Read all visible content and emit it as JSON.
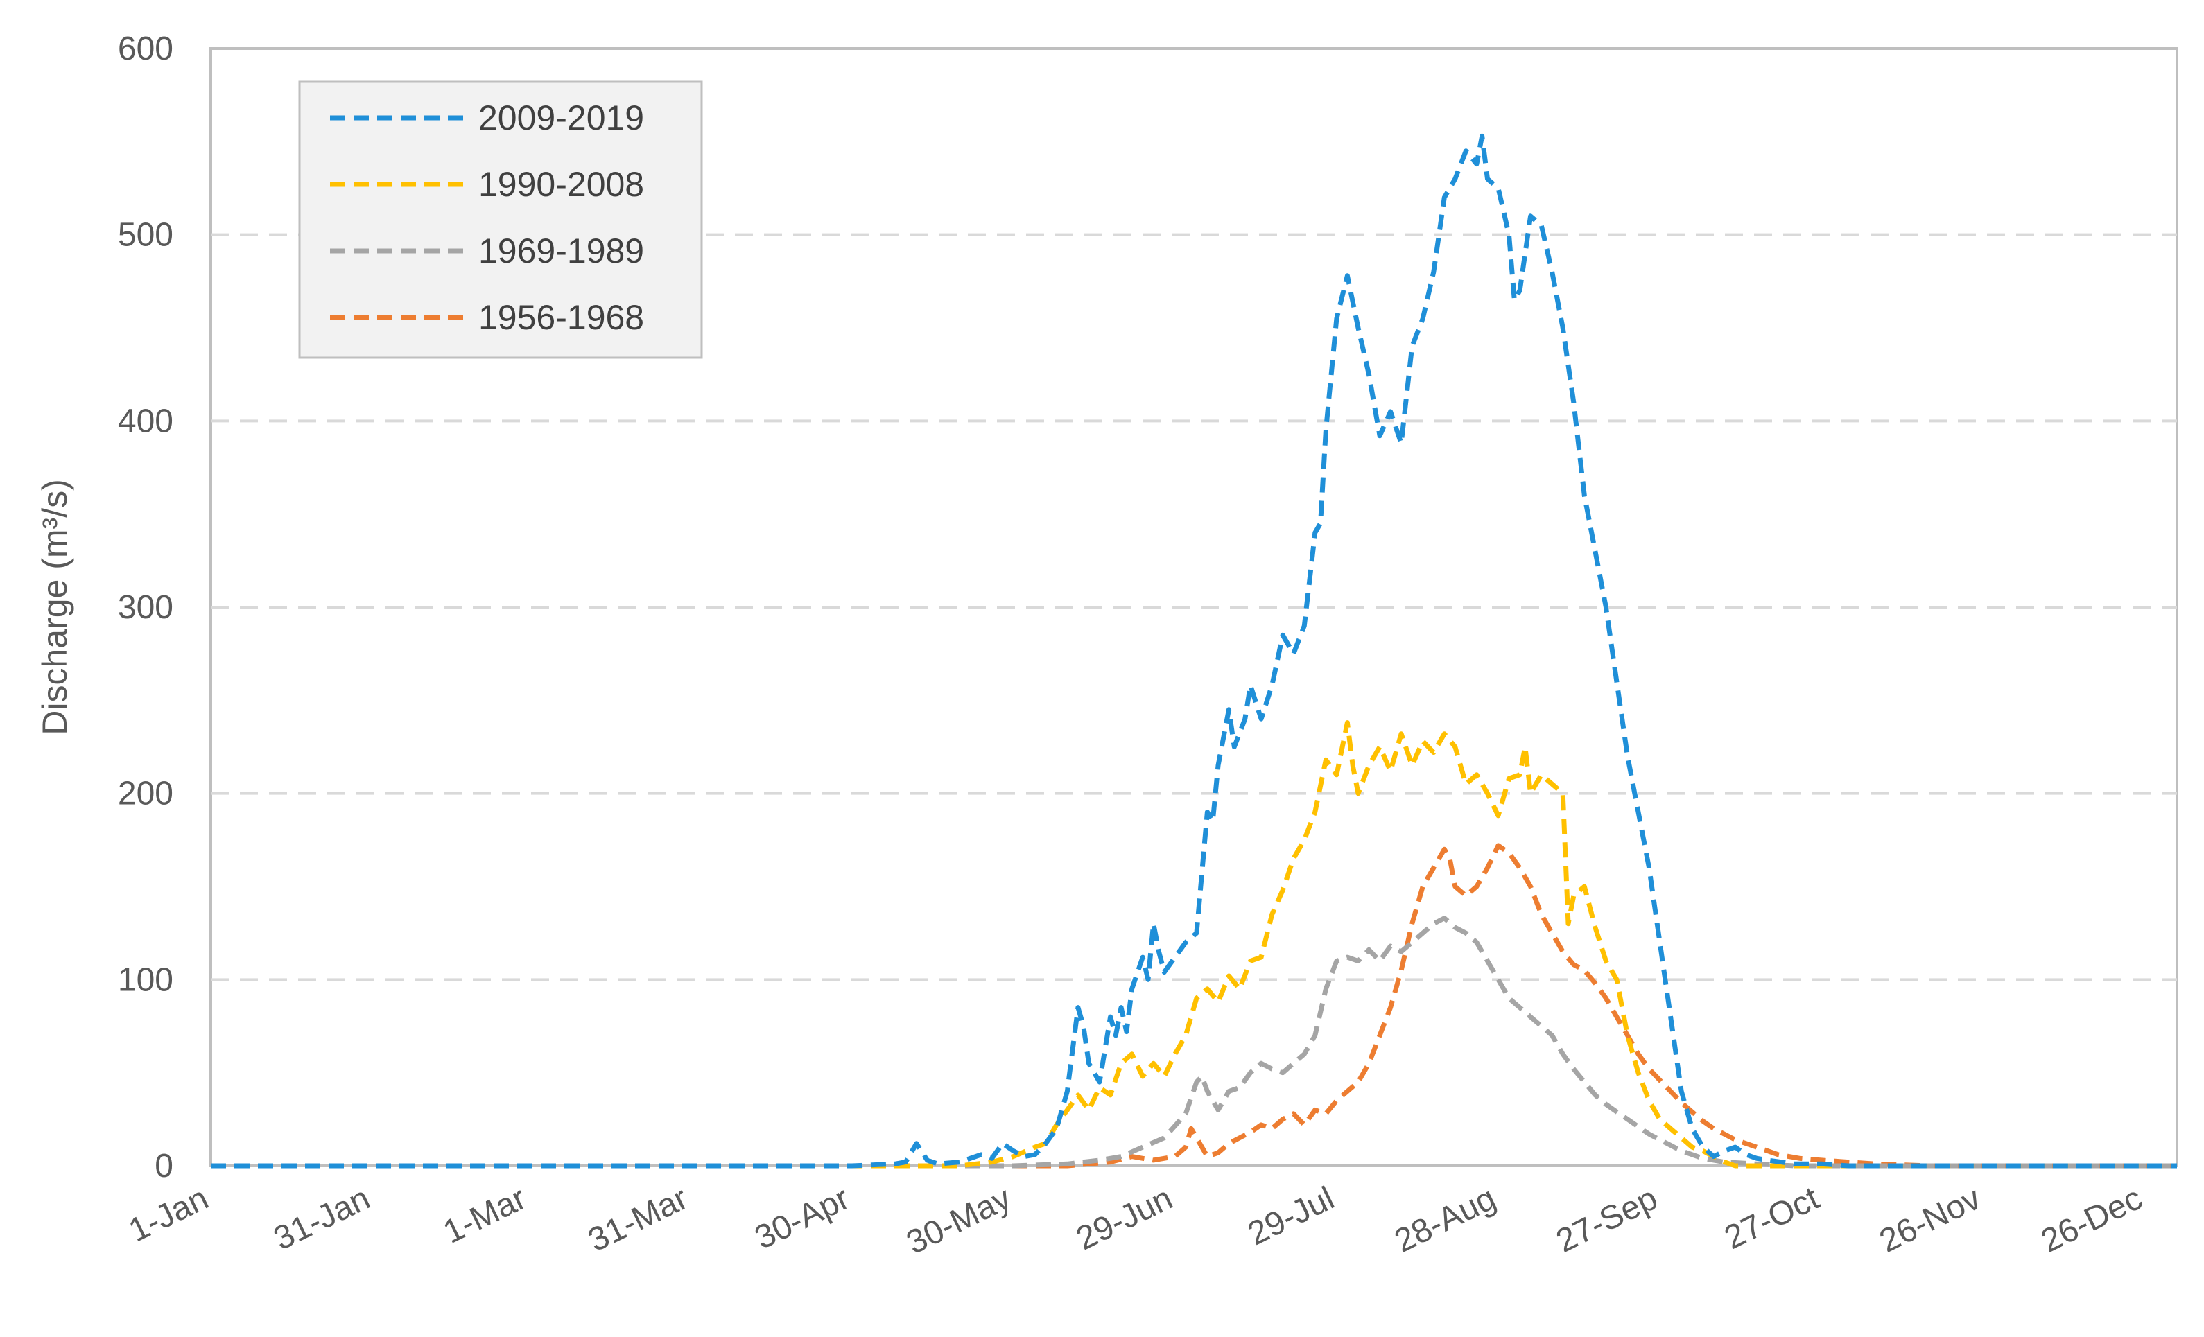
{
  "chart_data": {
    "type": "line",
    "title": "",
    "xlabel": "",
    "ylabel": "Discharge (m³/s)",
    "ylim": [
      0,
      600
    ],
    "yticks": [
      0,
      100,
      200,
      300,
      400,
      500,
      600
    ],
    "xlim": [
      1,
      366
    ],
    "xticks": [
      {
        "day": 1,
        "label": "1-Jan"
      },
      {
        "day": 31,
        "label": "31-Jan"
      },
      {
        "day": 60,
        "label": "1-Mar"
      },
      {
        "day": 90,
        "label": "31-Mar"
      },
      {
        "day": 120,
        "label": "30-Apr"
      },
      {
        "day": 150,
        "label": "30-May"
      },
      {
        "day": 180,
        "label": "29-Jun"
      },
      {
        "day": 210,
        "label": "29-Jul"
      },
      {
        "day": 240,
        "label": "28-Aug"
      },
      {
        "day": 270,
        "label": "27-Sep"
      },
      {
        "day": 300,
        "label": "27-Oct"
      },
      {
        "day": 330,
        "label": "26-Nov"
      },
      {
        "day": 360,
        "label": "26-Dec"
      }
    ],
    "grid": "horizontal dashed",
    "legend_position": "top-left",
    "series": [
      {
        "name": "2009-2019",
        "color": "#1F8FD8",
        "points": [
          [
            1,
            0
          ],
          [
            120,
            0
          ],
          [
            128,
            1
          ],
          [
            130,
            2
          ],
          [
            132,
            12
          ],
          [
            134,
            3
          ],
          [
            136,
            1
          ],
          [
            140,
            2
          ],
          [
            144,
            6
          ],
          [
            146,
            4
          ],
          [
            148,
            12
          ],
          [
            150,
            8
          ],
          [
            152,
            5
          ],
          [
            154,
            6
          ],
          [
            156,
            12
          ],
          [
            158,
            20
          ],
          [
            160,
            40
          ],
          [
            162,
            85
          ],
          [
            163,
            75
          ],
          [
            164,
            55
          ],
          [
            166,
            45
          ],
          [
            168,
            80
          ],
          [
            169,
            70
          ],
          [
            170,
            85
          ],
          [
            171,
            72
          ],
          [
            172,
            95
          ],
          [
            174,
            112
          ],
          [
            175,
            100
          ],
          [
            176,
            130
          ],
          [
            177,
            115
          ],
          [
            178,
            104
          ],
          [
            180,
            112
          ],
          [
            182,
            120
          ],
          [
            184,
            125
          ],
          [
            186,
            190
          ],
          [
            187,
            185
          ],
          [
            188,
            215
          ],
          [
            190,
            245
          ],
          [
            191,
            225
          ],
          [
            193,
            240
          ],
          [
            194,
            258
          ],
          [
            196,
            240
          ],
          [
            198,
            258
          ],
          [
            200,
            285
          ],
          [
            202,
            275
          ],
          [
            204,
            290
          ],
          [
            206,
            340
          ],
          [
            207,
            345
          ],
          [
            208,
            395
          ],
          [
            210,
            455
          ],
          [
            212,
            478
          ],
          [
            214,
            450
          ],
          [
            216,
            425
          ],
          [
            218,
            392
          ],
          [
            220,
            405
          ],
          [
            222,
            388
          ],
          [
            224,
            440
          ],
          [
            226,
            455
          ],
          [
            228,
            480
          ],
          [
            230,
            520
          ],
          [
            232,
            530
          ],
          [
            234,
            545
          ],
          [
            236,
            538
          ],
          [
            237,
            553
          ],
          [
            238,
            530
          ],
          [
            240,
            525
          ],
          [
            242,
            500
          ],
          [
            243,
            465
          ],
          [
            244,
            470
          ],
          [
            246,
            510
          ],
          [
            248,
            505
          ],
          [
            250,
            480
          ],
          [
            252,
            450
          ],
          [
            254,
            410
          ],
          [
            256,
            360
          ],
          [
            258,
            330
          ],
          [
            260,
            300
          ],
          [
            262,
            260
          ],
          [
            264,
            220
          ],
          [
            266,
            190
          ],
          [
            268,
            160
          ],
          [
            270,
            120
          ],
          [
            272,
            80
          ],
          [
            274,
            40
          ],
          [
            276,
            20
          ],
          [
            278,
            10
          ],
          [
            280,
            5
          ],
          [
            282,
            8
          ],
          [
            284,
            10
          ],
          [
            286,
            6
          ],
          [
            288,
            4
          ],
          [
            290,
            3
          ],
          [
            295,
            1
          ],
          [
            300,
            1
          ],
          [
            305,
            0
          ],
          [
            366,
            0
          ]
        ]
      },
      {
        "name": "1990-2008",
        "color": "#FFC000",
        "points": [
          [
            1,
            0
          ],
          [
            140,
            0
          ],
          [
            146,
            2
          ],
          [
            150,
            5
          ],
          [
            154,
            10
          ],
          [
            156,
            12
          ],
          [
            158,
            22
          ],
          [
            160,
            30
          ],
          [
            162,
            38
          ],
          [
            164,
            30
          ],
          [
            166,
            42
          ],
          [
            168,
            38
          ],
          [
            170,
            55
          ],
          [
            172,
            60
          ],
          [
            174,
            48
          ],
          [
            176,
            55
          ],
          [
            178,
            48
          ],
          [
            180,
            60
          ],
          [
            182,
            70
          ],
          [
            184,
            90
          ],
          [
            186,
            95
          ],
          [
            188,
            88
          ],
          [
            190,
            102
          ],
          [
            192,
            95
          ],
          [
            194,
            110
          ],
          [
            196,
            112
          ],
          [
            198,
            135
          ],
          [
            200,
            148
          ],
          [
            202,
            165
          ],
          [
            204,
            175
          ],
          [
            206,
            190
          ],
          [
            208,
            218
          ],
          [
            210,
            210
          ],
          [
            212,
            238
          ],
          [
            213,
            215
          ],
          [
            214,
            200
          ],
          [
            216,
            215
          ],
          [
            218,
            225
          ],
          [
            220,
            212
          ],
          [
            222,
            232
          ],
          [
            224,
            215
          ],
          [
            226,
            228
          ],
          [
            228,
            222
          ],
          [
            230,
            232
          ],
          [
            232,
            225
          ],
          [
            234,
            205
          ],
          [
            236,
            210
          ],
          [
            238,
            200
          ],
          [
            240,
            188
          ],
          [
            242,
            208
          ],
          [
            244,
            210
          ],
          [
            245,
            225
          ],
          [
            246,
            200
          ],
          [
            248,
            210
          ],
          [
            250,
            205
          ],
          [
            252,
            200
          ],
          [
            253,
            130
          ],
          [
            254,
            145
          ],
          [
            256,
            150
          ],
          [
            258,
            128
          ],
          [
            260,
            110
          ],
          [
            262,
            100
          ],
          [
            264,
            70
          ],
          [
            266,
            50
          ],
          [
            268,
            35
          ],
          [
            270,
            25
          ],
          [
            272,
            20
          ],
          [
            274,
            15
          ],
          [
            276,
            10
          ],
          [
            278,
            8
          ],
          [
            280,
            5
          ],
          [
            282,
            2
          ],
          [
            284,
            0
          ],
          [
            366,
            0
          ]
        ]
      },
      {
        "name": "1969-1989",
        "color": "#A5A5A5",
        "points": [
          [
            1,
            0
          ],
          [
            150,
            0
          ],
          [
            160,
            1
          ],
          [
            166,
            3
          ],
          [
            170,
            5
          ],
          [
            174,
            10
          ],
          [
            178,
            15
          ],
          [
            182,
            28
          ],
          [
            184,
            45
          ],
          [
            185,
            48
          ],
          [
            186,
            40
          ],
          [
            188,
            30
          ],
          [
            190,
            40
          ],
          [
            192,
            42
          ],
          [
            194,
            50
          ],
          [
            196,
            55
          ],
          [
            198,
            52
          ],
          [
            200,
            50
          ],
          [
            202,
            55
          ],
          [
            204,
            60
          ],
          [
            206,
            70
          ],
          [
            208,
            95
          ],
          [
            210,
            110
          ],
          [
            212,
            112
          ],
          [
            214,
            110
          ],
          [
            216,
            116
          ],
          [
            218,
            110
          ],
          [
            220,
            118
          ],
          [
            222,
            115
          ],
          [
            224,
            120
          ],
          [
            226,
            125
          ],
          [
            228,
            130
          ],
          [
            230,
            133
          ],
          [
            232,
            128
          ],
          [
            234,
            125
          ],
          [
            236,
            120
          ],
          [
            238,
            110
          ],
          [
            240,
            100
          ],
          [
            242,
            90
          ],
          [
            244,
            85
          ],
          [
            246,
            80
          ],
          [
            248,
            75
          ],
          [
            250,
            70
          ],
          [
            252,
            60
          ],
          [
            254,
            52
          ],
          [
            256,
            45
          ],
          [
            258,
            38
          ],
          [
            260,
            33
          ],
          [
            262,
            29
          ],
          [
            264,
            25
          ],
          [
            266,
            21
          ],
          [
            268,
            17
          ],
          [
            270,
            14
          ],
          [
            272,
            11
          ],
          [
            274,
            8
          ],
          [
            278,
            4
          ],
          [
            282,
            2
          ],
          [
            288,
            1
          ],
          [
            295,
            0
          ],
          [
            366,
            0
          ]
        ]
      },
      {
        "name": "1956-1968",
        "color": "#ED7D31",
        "points": [
          [
            1,
            0
          ],
          [
            160,
            0
          ],
          [
            168,
            2
          ],
          [
            172,
            5
          ],
          [
            176,
            3
          ],
          [
            180,
            5
          ],
          [
            182,
            10
          ],
          [
            183,
            20
          ],
          [
            184,
            15
          ],
          [
            186,
            5
          ],
          [
            188,
            7
          ],
          [
            190,
            12
          ],
          [
            192,
            15
          ],
          [
            194,
            18
          ],
          [
            196,
            22
          ],
          [
            198,
            20
          ],
          [
            200,
            25
          ],
          [
            202,
            28
          ],
          [
            204,
            22
          ],
          [
            206,
            30
          ],
          [
            208,
            28
          ],
          [
            210,
            35
          ],
          [
            212,
            40
          ],
          [
            214,
            45
          ],
          [
            216,
            55
          ],
          [
            218,
            70
          ],
          [
            220,
            85
          ],
          [
            222,
            105
          ],
          [
            224,
            130
          ],
          [
            226,
            150
          ],
          [
            228,
            160
          ],
          [
            230,
            170
          ],
          [
            231,
            165
          ],
          [
            232,
            150
          ],
          [
            234,
            145
          ],
          [
            236,
            150
          ],
          [
            238,
            160
          ],
          [
            240,
            172
          ],
          [
            242,
            168
          ],
          [
            244,
            160
          ],
          [
            246,
            150
          ],
          [
            248,
            135
          ],
          [
            250,
            125
          ],
          [
            252,
            115
          ],
          [
            254,
            108
          ],
          [
            256,
            105
          ],
          [
            258,
            98
          ],
          [
            260,
            90
          ],
          [
            262,
            80
          ],
          [
            264,
            70
          ],
          [
            266,
            60
          ],
          [
            268,
            52
          ],
          [
            270,
            46
          ],
          [
            272,
            40
          ],
          [
            274,
            34
          ],
          [
            276,
            29
          ],
          [
            278,
            24
          ],
          [
            280,
            20
          ],
          [
            284,
            14
          ],
          [
            288,
            10
          ],
          [
            292,
            6
          ],
          [
            296,
            4
          ],
          [
            300,
            3
          ],
          [
            305,
            2
          ],
          [
            310,
            1
          ],
          [
            320,
            0
          ],
          [
            366,
            0
          ]
        ]
      }
    ]
  }
}
